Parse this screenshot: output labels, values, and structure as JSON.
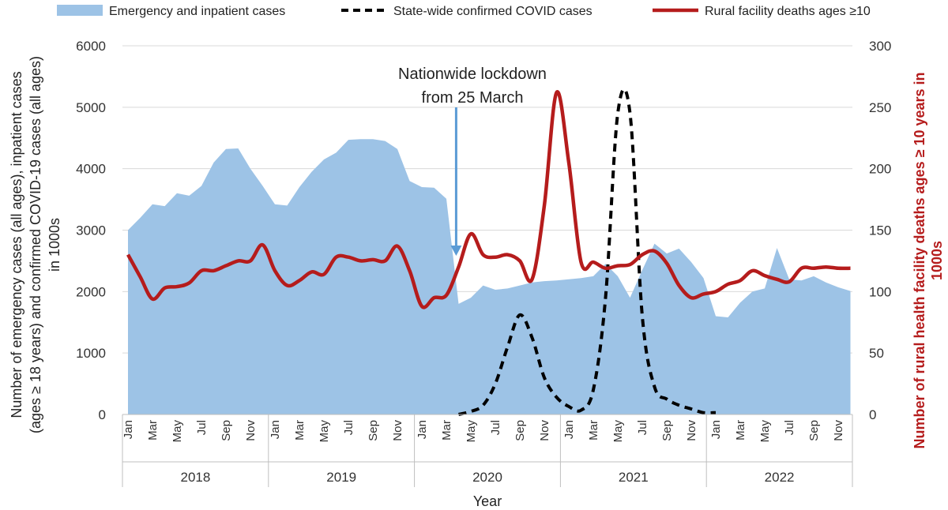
{
  "chart_data": {
    "type": "line",
    "legend": {
      "position": "top",
      "entries": [
        {
          "label": "Emergency and inpatient cases",
          "kind": "area",
          "color": "#9dc3e6"
        },
        {
          "label": "State-wide confirmed COVID cases",
          "kind": "dashed-line",
          "color": "#000000"
        },
        {
          "label": "Rural facility deaths ages ≥10",
          "kind": "line",
          "color": "#b51c1c"
        }
      ]
    },
    "xlabel": "Year",
    "ylabel_left": "Number of emergency cases (all ages), inpatient cases (ages ≥ 18 years) and confirmed COVID-19 cases (all ages) in 1000s",
    "ylabel_left_lines": [
      "Number of emergency cases (all ages), inpatient cases",
      "(ages ≥ 18 years) and confirmed COVID-19 cases (all ages)",
      "in 1000s"
    ],
    "ylabel_right": "Number of rural health facility deaths ages ≥ 10 years in 1000s",
    "ylabel_right_lines": [
      "Number of rural health facility deaths ages ≥ 10 years in",
      "1000s"
    ],
    "y_left": {
      "min": 0,
      "max": 6000,
      "ticks": [
        0,
        1000,
        2000,
        3000,
        4000,
        5000,
        6000
      ]
    },
    "y_right": {
      "min": 0,
      "max": 300,
      "ticks": [
        0,
        50,
        100,
        150,
        200,
        250,
        300
      ]
    },
    "grid": true,
    "years": [
      "2018",
      "2019",
      "2020",
      "2021",
      "2022"
    ],
    "month_tick_labels": [
      "Jan",
      "Mar",
      "May",
      "Jul",
      "Sep",
      "Nov"
    ],
    "months_per_year": 12,
    "annotation": {
      "text_lines": [
        "Nationwide lockdown",
        "from 25 March"
      ],
      "month_index": 26.8,
      "arrow_color": "#5b9bd5"
    },
    "series": [
      {
        "name": "Emergency and inpatient cases",
        "axis": "left",
        "style": "area",
        "color": "#9dc3e6",
        "values": [
          3000,
          3200,
          3420,
          3390,
          3600,
          3560,
          3720,
          4100,
          4320,
          4330,
          4000,
          3720,
          3420,
          3400,
          3700,
          3950,
          4150,
          4260,
          4470,
          4480,
          4480,
          4450,
          4320,
          3800,
          3700,
          3690,
          3510,
          1800,
          1900,
          2100,
          2030,
          2050,
          2100,
          2150,
          2170,
          2180,
          2200,
          2220,
          2250,
          2450,
          2250,
          1900,
          2350,
          2780,
          2620,
          2700,
          2480,
          2220,
          1600,
          1580,
          1820,
          2000,
          2050,
          2710,
          2200,
          2180,
          2250,
          2150,
          2070,
          2010
        ]
      },
      {
        "name": "State-wide confirmed COVID cases",
        "axis": "left",
        "style": "dashed",
        "color": "#000000",
        "start_index": 27,
        "values": [
          0,
          50,
          150,
          500,
          1100,
          1620,
          1250,
          600,
          280,
          130,
          70,
          400,
          1900,
          4900,
          4900,
          1600,
          450,
          250,
          150,
          90,
          30,
          30
        ]
      },
      {
        "name": "Rural facility deaths ages ≥10",
        "axis": "right",
        "style": "solid",
        "color": "#b51c1c",
        "values": [
          130,
          112,
          94,
          103,
          104,
          107,
          117,
          117,
          121,
          125,
          125,
          138,
          117,
          105,
          109,
          116,
          114,
          128,
          128,
          125,
          126,
          125,
          137,
          117,
          88,
          95,
          97,
          120,
          147,
          130,
          128,
          130,
          125,
          110,
          170,
          262,
          205,
          124,
          124,
          119,
          121,
          122,
          130,
          133,
          123,
          105,
          95,
          98,
          100,
          106,
          109,
          117,
          113,
          110,
          108,
          119,
          119,
          120,
          119,
          119
        ]
      }
    ]
  }
}
